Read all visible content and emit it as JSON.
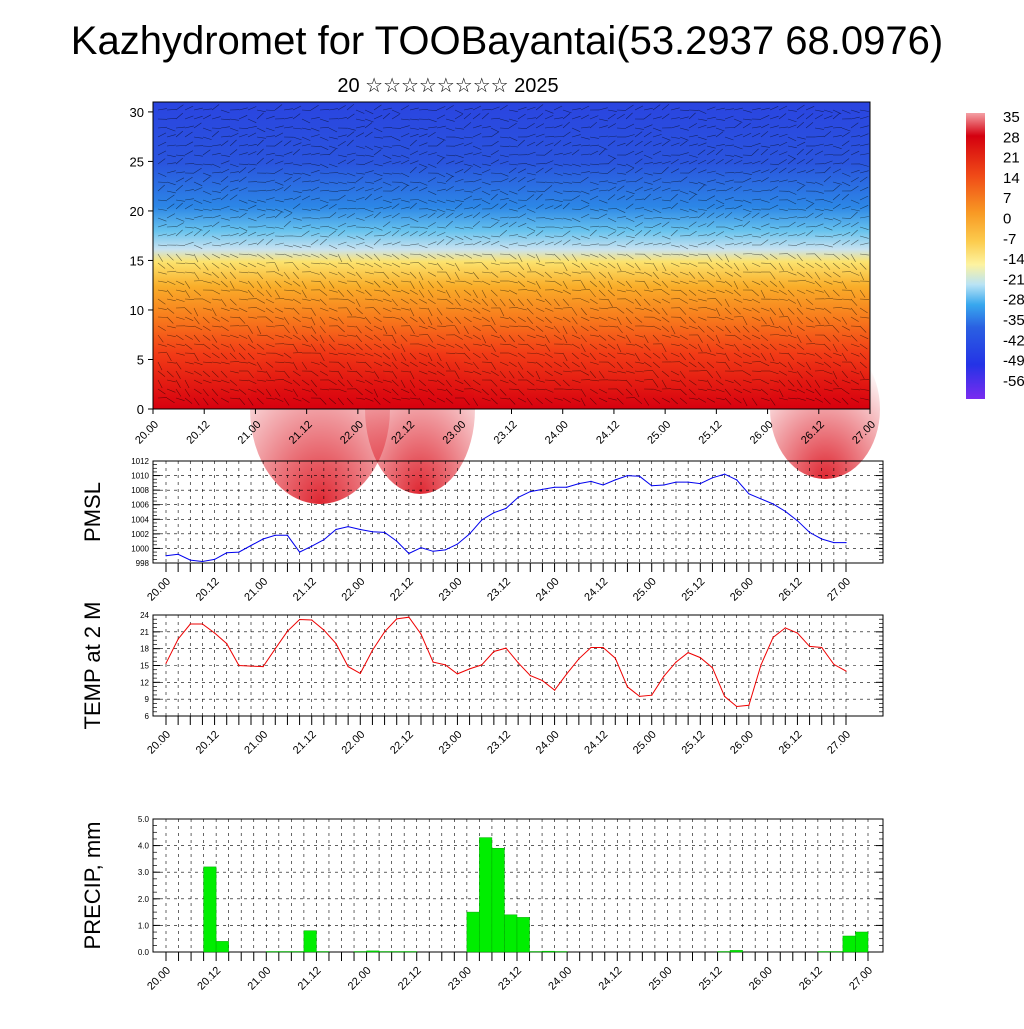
{
  "header": {
    "title": "Kazhydromet for TOOBayantai(53.2937 68.0976)",
    "subtitle": "20 ☆☆☆☆☆☆☆☆ 2025"
  },
  "time_labels": [
    "20.00",
    "20.12",
    "21.00",
    "21.12",
    "22.00",
    "22.12",
    "23.00",
    "23.12",
    "24.00",
    "24.12",
    "25.00",
    "25.12",
    "26.00",
    "26.12",
    "27.00"
  ],
  "colors": {
    "pmsl_line": "#0000ee",
    "temp_line": "#ee0000",
    "precip_bar": "#00ee00",
    "precip_bar_edge": "#00aa00"
  },
  "chart_data": [
    {
      "type": "heatmap",
      "id": "cross-section",
      "title": "",
      "xlabel": "",
      "ylabel": "",
      "ylim": [
        0,
        31
      ],
      "yticks": [
        0,
        5,
        10,
        15,
        20,
        25,
        30
      ],
      "x": [
        "20.00",
        "20.12",
        "21.00",
        "21.12",
        "22.00",
        "22.12",
        "23.00",
        "23.12",
        "24.00",
        "24.12",
        "25.00",
        "25.12",
        "26.00",
        "26.12",
        "27.00"
      ],
      "colorbar": {
        "labels": [
          "35",
          "28",
          "21",
          "14",
          "7",
          "0",
          "-7",
          "-14",
          "-21",
          "-28",
          "-35",
          "-42",
          "-49",
          "-56"
        ],
        "range": [
          -56,
          35
        ]
      },
      "overlay": "wind barbs",
      "description_values": {
        "level_of_zero_isotherm_approx": 16
      }
    },
    {
      "type": "line",
      "id": "pmsl",
      "ylabel": "PMSL",
      "ylim": [
        998,
        1012
      ],
      "yticks": [
        998,
        1000,
        1002,
        1004,
        1006,
        1008,
        1010,
        1012
      ],
      "x_hours": [
        0,
        3,
        6,
        9,
        12,
        15,
        18,
        21,
        24,
        27,
        30,
        33,
        36,
        39,
        42,
        45,
        48,
        51,
        54,
        57,
        60,
        63,
        66,
        69,
        72,
        75,
        78,
        81,
        84,
        87,
        90,
        93,
        96,
        99,
        102,
        105,
        108,
        111,
        114,
        117,
        120,
        123,
        126,
        129,
        132,
        135,
        138,
        141,
        144,
        147,
        150,
        153,
        156,
        159,
        162,
        165,
        168
      ],
      "values": [
        999.0,
        999.2,
        998.4,
        998.2,
        998.5,
        999.4,
        999.5,
        1000.4,
        1001.3,
        1001.8,
        1001.8,
        999.5,
        1000.3,
        1001.2,
        1002.6,
        1003.0,
        1002.6,
        1002.3,
        1002.2,
        1001.0,
        999.3,
        1000.1,
        999.6,
        999.8,
        1000.6,
        1002.0,
        1003.9,
        1004.9,
        1005.5,
        1007.0,
        1007.8,
        1008.1,
        1008.4,
        1008.4,
        1008.9,
        1009.2,
        1008.7,
        1009.4,
        1010.0,
        1009.9,
        1008.6,
        1008.7,
        1009.1,
        1009.1,
        1008.9,
        1009.7,
        1010.2,
        1009.4,
        1007.5,
        1006.8,
        1006.1,
        1005.1,
        1003.8,
        1002.2,
        1001.3,
        1000.8,
        1000.8
      ]
    },
    {
      "type": "line",
      "id": "temp2m",
      "ylabel": "TEMP at 2 M",
      "ylim": [
        6,
        24
      ],
      "yticks": [
        6,
        9,
        12,
        15,
        18,
        21,
        24
      ],
      "x_hours": [
        0,
        3,
        6,
        9,
        12,
        15,
        18,
        21,
        24,
        27,
        30,
        33,
        36,
        39,
        42,
        45,
        48,
        51,
        54,
        57,
        60,
        63,
        66,
        69,
        72,
        75,
        78,
        81,
        84,
        87,
        90,
        93,
        96,
        99,
        102,
        105,
        108,
        111,
        114,
        117,
        120,
        123,
        126,
        129,
        132,
        135,
        138,
        141,
        144,
        147,
        150,
        153,
        156,
        159,
        162,
        165,
        168
      ],
      "values": [
        15.4,
        19.7,
        22.4,
        22.4,
        20.8,
        18.9,
        15.0,
        14.9,
        14.8,
        18.0,
        21.1,
        23.2,
        23.1,
        21.3,
        18.9,
        14.8,
        13.6,
        17.7,
        21.0,
        23.3,
        23.6,
        20.6,
        15.6,
        15.1,
        13.5,
        14.4,
        15.1,
        17.5,
        18.1,
        15.5,
        13.2,
        12.3,
        10.6,
        13.5,
        16.2,
        18.2,
        18.2,
        16.3,
        11.2,
        9.5,
        9.7,
        13.1,
        15.6,
        17.3,
        16.4,
        14.6,
        9.5,
        7.7,
        7.9,
        15.1,
        20.0,
        21.7,
        20.8,
        18.4,
        18.2,
        15.2,
        14.0
      ]
    },
    {
      "type": "bar",
      "id": "precip",
      "ylabel": "PRECIP, mm",
      "ylim": [
        0,
        5
      ],
      "yticks": [
        "0.0",
        "1.0",
        "2.0",
        "3.0",
        "4.0",
        "5.0"
      ],
      "x_hours_start": [
        9,
        12,
        24,
        27,
        30,
        33,
        36,
        45,
        48,
        51,
        54,
        57,
        72,
        75,
        78,
        81,
        84,
        87,
        90,
        93,
        132,
        135,
        156,
        159,
        162,
        165
      ],
      "values": [
        3.2,
        0.4,
        0.02,
        0.02,
        0.02,
        0.8,
        0.02,
        0.02,
        0.04,
        0.02,
        0.02,
        0.02,
        1.5,
        4.3,
        3.9,
        1.4,
        1.3,
        0.02,
        0.03,
        0.02,
        0.02,
        0.06,
        0.02,
        0.02,
        0.6,
        0.75
      ]
    }
  ]
}
